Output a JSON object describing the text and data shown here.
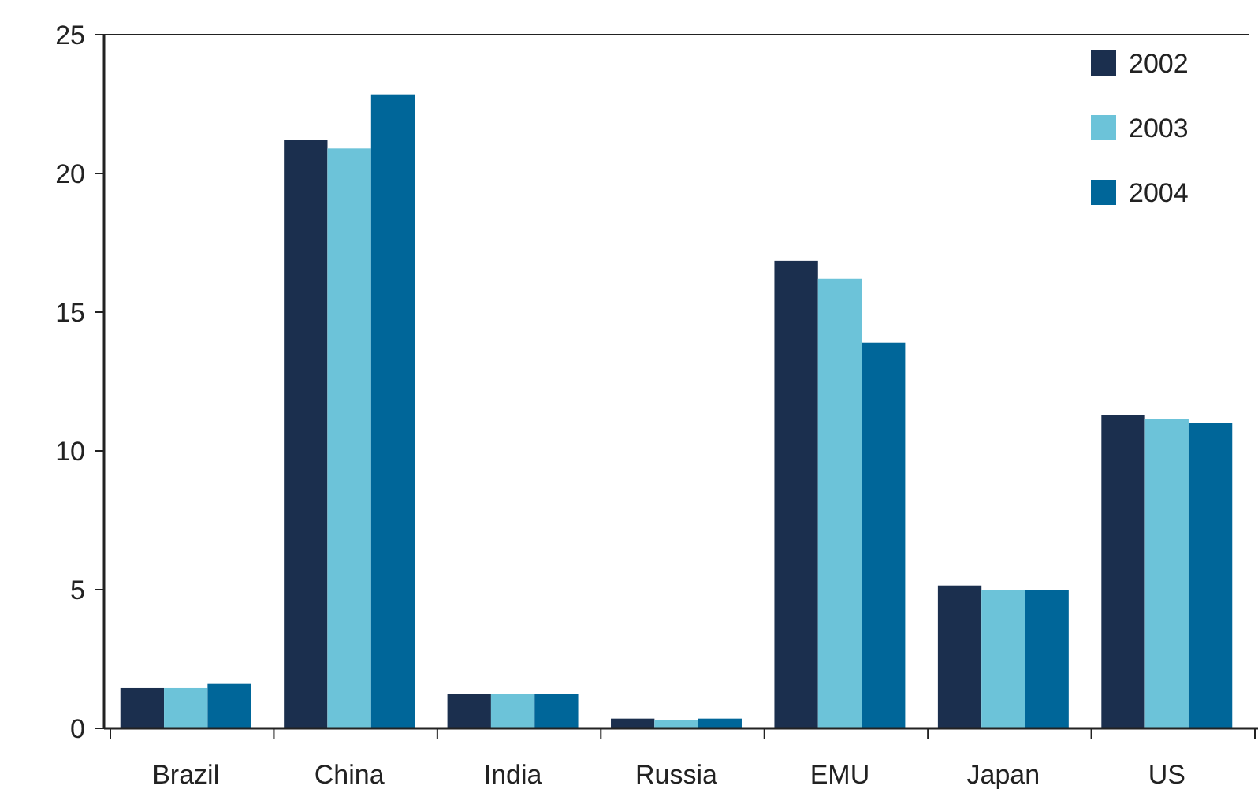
{
  "chart_data": {
    "type": "bar",
    "categories": [
      "Brazil",
      "China",
      "India",
      "Russia",
      "EMU",
      "Japan",
      "US"
    ],
    "series": [
      {
        "name": "2002",
        "color": "#1b2f4e",
        "values": [
          1.45,
          21.2,
          1.25,
          0.35,
          16.85,
          5.15,
          11.3
        ]
      },
      {
        "name": "2003",
        "color": "#6cc3d9",
        "values": [
          1.45,
          20.9,
          1.25,
          0.3,
          16.2,
          5.0,
          11.15
        ]
      },
      {
        "name": "2004",
        "color": "#006699",
        "values": [
          1.6,
          22.85,
          1.25,
          0.35,
          13.9,
          5.0,
          11.0
        ]
      }
    ],
    "ylim": [
      0,
      25
    ],
    "yticks": [
      0,
      5,
      10,
      15,
      20,
      25
    ],
    "grid": false,
    "legend": "top right"
  }
}
